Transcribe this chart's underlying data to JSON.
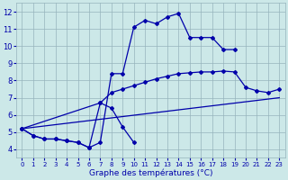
{
  "bg": "#cce8e8",
  "grid_color": "#96b4bc",
  "lc": "#0000aa",
  "xlabel": "Graphe des températures (°C)",
  "ylim": [
    3.5,
    12.5
  ],
  "xlim": [
    -0.5,
    23.5
  ],
  "yticks": [
    4,
    5,
    6,
    7,
    8,
    9,
    10,
    11,
    12
  ],
  "xticks": [
    0,
    1,
    2,
    3,
    4,
    5,
    6,
    7,
    8,
    9,
    10,
    11,
    12,
    13,
    14,
    15,
    16,
    17,
    18,
    19,
    20,
    21,
    22,
    23
  ],
  "curve1_x": [
    0,
    1,
    2,
    3,
    4,
    5,
    6,
    7,
    8,
    9,
    10,
    11,
    12,
    13,
    14,
    15,
    16,
    17,
    18,
    19
  ],
  "curve1_y": [
    5.2,
    4.8,
    4.6,
    4.6,
    4.5,
    4.4,
    4.1,
    4.4,
    8.4,
    8.4,
    11.1,
    11.5,
    11.3,
    11.7,
    11.9,
    10.5,
    10.5,
    10.5,
    9.8,
    9.8
  ],
  "curve2_x": [
    0,
    1,
    2,
    3,
    4,
    5,
    6,
    7,
    8,
    9,
    10
  ],
  "curve2_y": [
    5.2,
    4.8,
    4.6,
    4.6,
    4.5,
    4.4,
    4.1,
    6.7,
    6.4,
    5.3,
    4.4
  ],
  "line3_x": [
    0,
    23
  ],
  "line3_y": [
    5.2,
    7.0
  ],
  "curve4_x": [
    0,
    7,
    8,
    9,
    10,
    11,
    12,
    13,
    14,
    15,
    16,
    17,
    18,
    19,
    20,
    21,
    22,
    23
  ],
  "curve4_y": [
    5.2,
    6.7,
    7.3,
    7.5,
    7.7,
    7.9,
    8.1,
    8.25,
    8.4,
    8.45,
    8.5,
    8.5,
    8.55,
    8.5,
    7.6,
    7.4,
    7.3,
    7.5
  ]
}
